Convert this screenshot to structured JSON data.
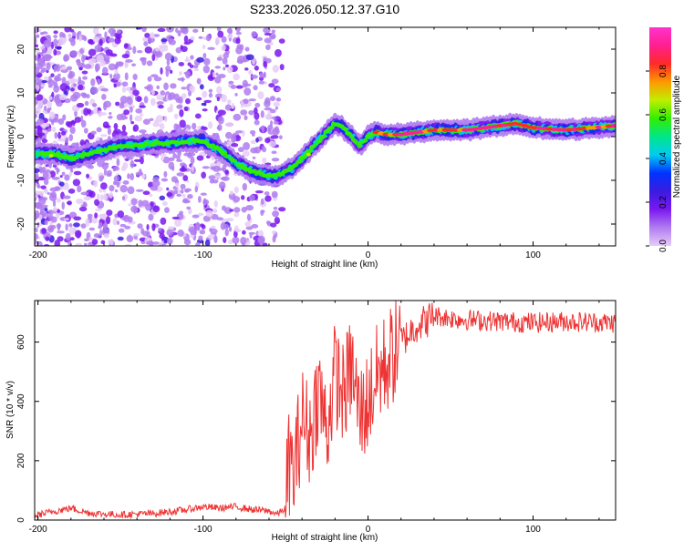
{
  "title": "S233.2026.050.12.37.G10",
  "chart_data": [
    {
      "type": "heatmap",
      "xlabel": "Height of straight line (km)",
      "ylabel": "Frequency (Hz)",
      "xlim": [
        -202,
        150
      ],
      "ylim": [
        -25,
        25
      ],
      "xticks": [
        -200,
        -100,
        0,
        100
      ],
      "yticks": [
        -20,
        -10,
        0,
        10,
        20
      ],
      "colorbar": {
        "label": "Normalized spectral amplitude",
        "range": [
          0,
          1
        ],
        "ticks": [
          0.0,
          0.2,
          0.4,
          0.6,
          0.8
        ],
        "colors": [
          "#e6ccf7",
          "#b07cf0",
          "#7a18f0",
          "#3a1be0",
          "#0033ff",
          "#00ccf0",
          "#00e68a",
          "#33ee00",
          "#bfee00",
          "#ff9900",
          "#ff2a2a",
          "#ff1f8f",
          "#ff33cc"
        ]
      },
      "ridge": {
        "x": [
          -202,
          -190,
          -180,
          -170,
          -160,
          -150,
          -140,
          -130,
          -120,
          -110,
          -100,
          -90,
          -80,
          -70,
          -60,
          -55,
          -50,
          -45,
          -40,
          -35,
          -30,
          -25,
          -20,
          -15,
          -10,
          -5,
          0,
          5,
          10,
          20,
          30,
          40,
          60,
          80,
          90,
          100,
          120,
          150
        ],
        "frequency": [
          -4,
          -4,
          -5,
          -4,
          -3,
          -2,
          -2,
          -1.5,
          -1.5,
          -1,
          -1,
          -3,
          -6,
          -8,
          -9,
          -9,
          -8,
          -7,
          -5,
          -3,
          -1,
          1,
          3,
          2,
          0,
          -2,
          0,
          1,
          0.5,
          0.5,
          1,
          1.5,
          1.5,
          2.5,
          3,
          2,
          1.5,
          2.5
        ]
      }
    },
    {
      "type": "line",
      "xlabel": "Height of straight line (km)",
      "ylabel": "SNR (10 * v/v)",
      "xlim": [
        -202,
        150
      ],
      "ylim": [
        0,
        740
      ],
      "xticks": [
        -200,
        -100,
        0,
        100
      ],
      "yticks": [
        0,
        200,
        400,
        600
      ],
      "color": "#ee3333",
      "series": [
        {
          "name": "SNR",
          "x": [
            -202,
            -190,
            -180,
            -170,
            -160,
            -150,
            -140,
            -130,
            -120,
            -110,
            -100,
            -90,
            -80,
            -70,
            -60,
            -55,
            -50,
            -48,
            -45,
            -40,
            -35,
            -30,
            -25,
            -20,
            -15,
            -10,
            -5,
            0,
            5,
            10,
            15,
            20,
            25,
            30,
            35,
            40,
            50,
            60,
            80,
            100,
            120,
            150
          ],
          "values": [
            15,
            30,
            40,
            25,
            20,
            18,
            20,
            22,
            28,
            35,
            45,
            40,
            45,
            35,
            30,
            20,
            40,
            200,
            150,
            350,
            280,
            450,
            300,
            500,
            420,
            520,
            350,
            400,
            480,
            520,
            560,
            600,
            630,
            660,
            670,
            690,
            680,
            675,
            670,
            665,
            670,
            665
          ]
        }
      ]
    }
  ]
}
